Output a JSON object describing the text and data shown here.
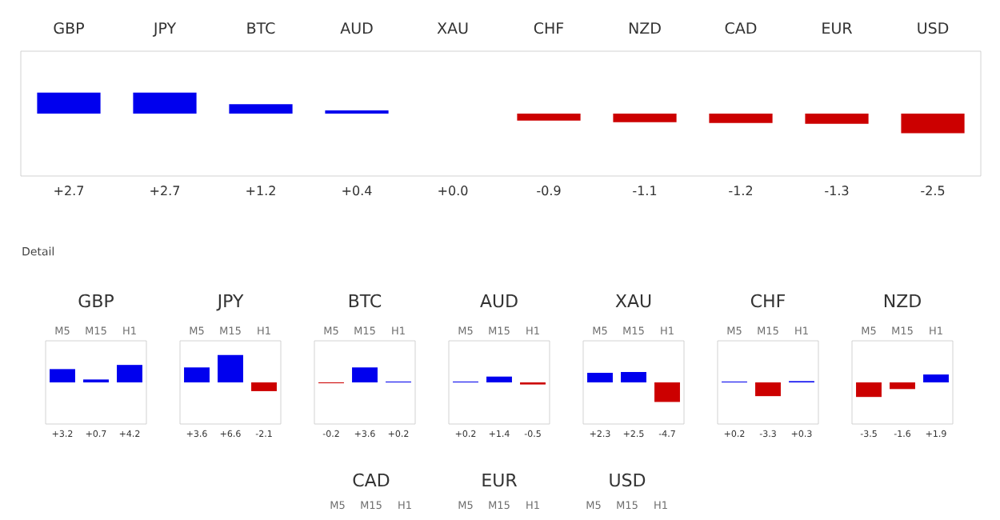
{
  "chart_data": [
    {
      "type": "bar",
      "categories": [
        "GBP",
        "JPY",
        "BTC",
        "AUD",
        "XAU",
        "CHF",
        "NZD",
        "CAD",
        "EUR",
        "USD"
      ],
      "values": [
        2.7,
        2.7,
        1.2,
        0.4,
        0.0,
        -0.9,
        -1.1,
        -1.2,
        -1.3,
        -2.5
      ],
      "colors": [
        "#0000ee",
        "#0000ee",
        "#0000ee",
        "#0000ee",
        "#0000ee",
        "#cc0000",
        "#cc0000",
        "#cc0000",
        "#cc0000",
        "#cc0000"
      ],
      "value_labels": [
        "+2.7",
        "+2.7",
        "+1.2",
        "+0.4",
        "+0.0",
        "-0.9",
        "-1.1",
        "-1.2",
        "-1.3",
        "-2.5"
      ],
      "ylim": [
        -8,
        8
      ],
      "tick_labels": "x"
    },
    {
      "type": "other",
      "title": "Detail"
    },
    {
      "type": "bar",
      "title": "GBP",
      "categories": [
        "M5",
        "M15",
        "H1"
      ],
      "values": [
        3.2,
        0.7,
        4.2
      ],
      "colors": [
        "#0000ee",
        "#0000ee",
        "#0000ee"
      ],
      "value_labels": [
        "+3.2",
        "+0.7",
        "+4.2"
      ],
      "ylim": [
        -10,
        10
      ],
      "tick_labels": "x"
    },
    {
      "type": "bar",
      "title": "JPY",
      "categories": [
        "M5",
        "M15",
        "H1"
      ],
      "values": [
        3.6,
        6.6,
        -2.1
      ],
      "colors": [
        "#0000ee",
        "#0000ee",
        "#cc0000"
      ],
      "value_labels": [
        "+3.6",
        "+6.6",
        "-2.1"
      ],
      "ylim": [
        -10,
        10
      ],
      "tick_labels": "x"
    },
    {
      "type": "bar",
      "title": "BTC",
      "categories": [
        "M5",
        "M15",
        "H1"
      ],
      "values": [
        -0.2,
        3.6,
        0.2
      ],
      "colors": [
        "#cc0000",
        "#0000ee",
        "#0000ee"
      ],
      "value_labels": [
        "-0.2",
        "+3.6",
        "+0.2"
      ],
      "ylim": [
        -10,
        10
      ],
      "tick_labels": "x"
    },
    {
      "type": "bar",
      "title": "AUD",
      "categories": [
        "M5",
        "M15",
        "H1"
      ],
      "values": [
        0.2,
        1.4,
        -0.5
      ],
      "colors": [
        "#0000ee",
        "#0000ee",
        "#cc0000"
      ],
      "value_labels": [
        "+0.2",
        "+1.4",
        "-0.5"
      ],
      "ylim": [
        -10,
        10
      ],
      "tick_labels": "x"
    },
    {
      "type": "bar",
      "title": "XAU",
      "categories": [
        "M5",
        "M15",
        "H1"
      ],
      "values": [
        2.3,
        2.5,
        -4.7
      ],
      "colors": [
        "#0000ee",
        "#0000ee",
        "#cc0000"
      ],
      "value_labels": [
        "+2.3",
        "+2.5",
        "-4.7"
      ],
      "ylim": [
        -10,
        10
      ],
      "tick_labels": "x"
    },
    {
      "type": "bar",
      "title": "CHF",
      "categories": [
        "M5",
        "M15",
        "H1"
      ],
      "values": [
        0.2,
        -3.3,
        0.3
      ],
      "colors": [
        "#0000ee",
        "#cc0000",
        "#0000ee"
      ],
      "value_labels": [
        "+0.2",
        "-3.3",
        "+0.3"
      ],
      "ylim": [
        -10,
        10
      ],
      "tick_labels": "x"
    },
    {
      "type": "bar",
      "title": "NZD",
      "categories": [
        "M5",
        "M15",
        "H1"
      ],
      "values": [
        -3.5,
        -1.6,
        1.9
      ],
      "colors": [
        "#cc0000",
        "#cc0000",
        "#0000ee"
      ],
      "value_labels": [
        "-3.5",
        "-1.6",
        "+1.9"
      ],
      "ylim": [
        -10,
        10
      ],
      "tick_labels": "x"
    },
    {
      "type": "other",
      "title": "CAD",
      "categories": [
        "M5",
        "M15",
        "H1"
      ]
    },
    {
      "type": "other",
      "title": "EUR",
      "categories": [
        "M5",
        "M15",
        "H1"
      ]
    },
    {
      "type": "other",
      "title": "USD",
      "categories": [
        "M5",
        "M15",
        "H1"
      ]
    }
  ]
}
